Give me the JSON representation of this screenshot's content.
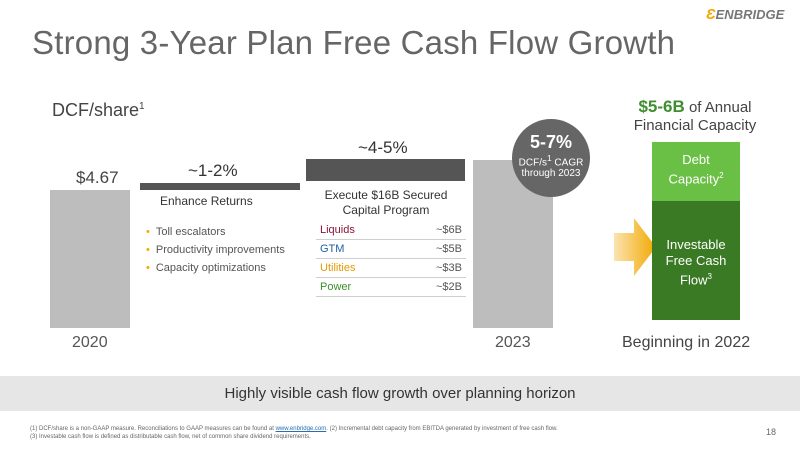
{
  "title": "Strong 3-Year Plan Free Cash Flow Growth",
  "logo": "ENBRIDGE",
  "dcf_label": "DCF/share",
  "dcf_sup": "1",
  "start_value": "$4.67",
  "segments": {
    "enhance_pct": "~1-2%",
    "enhance_label": "Enhance Returns",
    "bullets": [
      "Toll escalators",
      "Productivity improvements",
      "Capacity optimizations"
    ],
    "execute_pct": "~4-5%",
    "execute_label": "Execute $16B Secured Capital Program",
    "capital_table": [
      {
        "name": "Liquids",
        "value": "~$6B",
        "color": "#8a1538"
      },
      {
        "name": "GTM",
        "value": "~$5B",
        "color": "#1f5fa8"
      },
      {
        "name": "Utilities",
        "value": "~$3B",
        "color": "#e39b00"
      },
      {
        "name": "Power",
        "value": "~$2B",
        "color": "#3e8e2e"
      }
    ]
  },
  "cagr": {
    "value": "5-7%",
    "line1": "DCF/s",
    "sup": "1",
    "line1b": " CAGR",
    "line2": "through 2023"
  },
  "capacity": {
    "headline_value": "$5-6B",
    "headline_rest": " of Annual",
    "headline_line2": "Financial Capacity",
    "debt_label": "Debt Capacity",
    "debt_sup": "2",
    "fcf_label": "Investable Free Cash Flow",
    "fcf_sup": "3",
    "beginning": "Beginning in 2022"
  },
  "years": {
    "start": "2020",
    "end": "2023"
  },
  "band_text": "Highly visible cash flow growth over planning horizon",
  "footnotes": {
    "f1a": "(1) DCF/share is a non-GAAP measure. Reconciliations to GAAP measures can be found at ",
    "f1_link": "www.enbridge.com",
    "f1b": ".  (2) Incremental debt capacity from EBITDA generated by investment of free cash flow.",
    "f3": "(3) Investable cash flow is defined as distributable cash flow, net of common share dividend requirements."
  },
  "page_number": "18",
  "colors": {
    "green_dark": "#3a7a24",
    "green_light": "#6abf45",
    "accent": "#f2a900"
  }
}
